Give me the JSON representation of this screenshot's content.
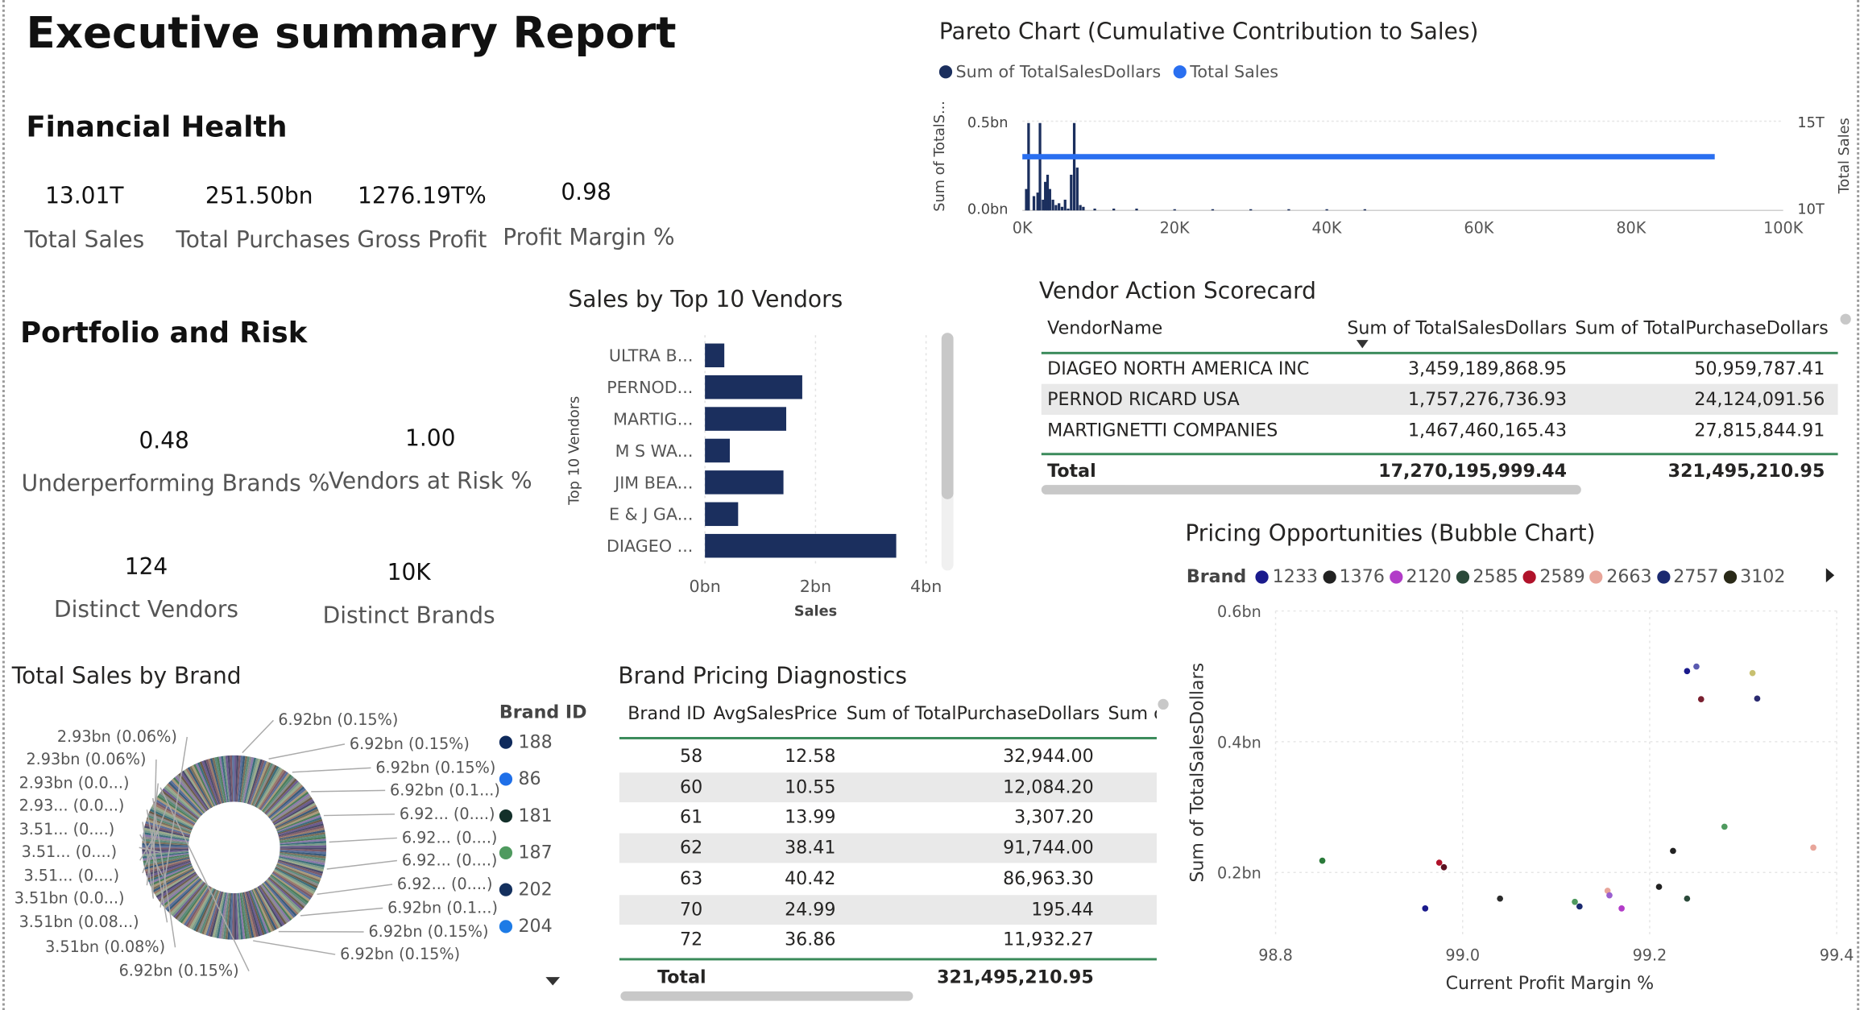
{
  "title": "Executive summary Report",
  "financial": {
    "heading": "Financial Health",
    "kpis": [
      {
        "value": "13.01T",
        "label": "Total Sales"
      },
      {
        "value": "251.50bn",
        "label": "Total Purchases"
      },
      {
        "value": "1276.19T%",
        "label": "Gross Profit"
      },
      {
        "value": "0.98",
        "label": "Profit Margin %"
      }
    ]
  },
  "portfolio": {
    "heading": "Portfolio and Risk",
    "kpis": [
      {
        "value": "0.48",
        "label": "Underperforming Brands %"
      },
      {
        "value": "1.00",
        "label": "Vendors at Risk %"
      },
      {
        "value": "124",
        "label": "Distinct Vendors"
      },
      {
        "value": "10K",
        "label": "Distinct Brands"
      }
    ]
  },
  "pareto": {
    "title": "Pareto Chart (Cumulative Contribution to Sales)",
    "legend": [
      "Sum of TotalSalesDollars",
      "Total Sales"
    ],
    "legend_colors": [
      "#1b2f5e",
      "#2a6ff0"
    ],
    "y_left_label": "Sum of TotalS...",
    "y_left_ticks": [
      "0.5bn",
      "0.0bn"
    ],
    "y_right_label": "Total Sales",
    "y_right_ticks": [
      "15T",
      "10T"
    ],
    "x_ticks": [
      "0K",
      "20K",
      "40K",
      "60K",
      "80K",
      "100K"
    ]
  },
  "vendors_chart": {
    "title": "Sales by Top 10 Vendors",
    "y_label": "Top 10 Vendors",
    "x_label": "Sales",
    "x_ticks": [
      "0bn",
      "2bn",
      "4bn"
    ],
    "color": "#1b2f5e"
  },
  "scorecard": {
    "title": "Vendor Action Scorecard",
    "columns": [
      "VendorName",
      "Sum of TotalSalesDollars",
      "Sum of TotalPurchaseDollars"
    ],
    "rows": [
      {
        "name": "DIAGEO NORTH AMERICA INC",
        "sales": "3,459,189,868.95",
        "purchases": "50,959,787.41"
      },
      {
        "name": "PERNOD RICARD USA",
        "sales": "1,757,276,736.93",
        "purchases": "24,124,091.56"
      },
      {
        "name": "MARTIGNETTI COMPANIES",
        "sales": "1,467,460,165.43",
        "purchases": "27,815,844.91"
      }
    ],
    "total_label": "Total",
    "total_sales": "17,270,195,999.44",
    "total_purchases": "321,495,210.95"
  },
  "donut": {
    "title": "Total Sales by Brand",
    "legend_title": "Brand ID",
    "legend": [
      {
        "id": "188",
        "color": "#0f2a5c"
      },
      {
        "id": "86",
        "color": "#1f6fe8"
      },
      {
        "id": "181",
        "color": "#13302a"
      },
      {
        "id": "187",
        "color": "#4f9a5f"
      },
      {
        "id": "202",
        "color": "#14305e"
      },
      {
        "id": "204",
        "color": "#1d7be6"
      }
    ],
    "labels_left": [
      "2.93bn (0.06%)",
      "2.93bn (0.06%)",
      "2.93bn (0.0...)",
      "2.93... (0.0...)",
      "3.51... (0....)",
      "3.51... (0....)",
      "3.51... (0....)",
      "3.51bn (0.0...)",
      "3.51bn (0.08...)",
      "3.51bn (0.08%)",
      "6.92bn (0.15%)"
    ],
    "labels_right": [
      "6.92bn (0.15%)",
      "6.92bn (0.15%)",
      "6.92bn (0.15%)",
      "6.92bn (0.1...)",
      "6.92... (0....)",
      "6.92... (0....)",
      "6.92... (0....)",
      "6.92... (0....)",
      "6.92bn (0.1...)",
      "6.92bn (0.15%)",
      "6.92bn (0.15%)"
    ]
  },
  "diagnostics": {
    "title": "Brand Pricing Diagnostics",
    "columns": [
      "Brand ID",
      "AvgSalesPrice",
      "Sum of TotalPurchaseDollars",
      "Sum c"
    ],
    "rows": [
      {
        "id": "58",
        "avg": "12.58",
        "purchase": "32,944.00"
      },
      {
        "id": "60",
        "avg": "10.55",
        "purchase": "12,084.20"
      },
      {
        "id": "61",
        "avg": "13.99",
        "purchase": "3,307.20"
      },
      {
        "id": "62",
        "avg": "38.41",
        "purchase": "91,744.00"
      },
      {
        "id": "63",
        "avg": "40.42",
        "purchase": "86,963.30"
      },
      {
        "id": "70",
        "avg": "24.99",
        "purchase": "195.44"
      },
      {
        "id": "72",
        "avg": "36.86",
        "purchase": "11,932.27"
      }
    ],
    "total_label": "Total",
    "total_purchase": "321,495,210.95"
  },
  "bubble": {
    "title": "Pricing Opportunities (Bubble Chart)",
    "legend_title": "Brand",
    "legend": [
      {
        "id": "1233",
        "color": "#1a1a8c"
      },
      {
        "id": "1376",
        "color": "#222222"
      },
      {
        "id": "2120",
        "color": "#b23cc8"
      },
      {
        "id": "2585",
        "color": "#2b4a3a"
      },
      {
        "id": "2589",
        "color": "#b0122a"
      },
      {
        "id": "2663",
        "color": "#e8a59a"
      },
      {
        "id": "2757",
        "color": "#1b2a70"
      },
      {
        "id": "3102",
        "color": "#2a2a18"
      }
    ],
    "y_label": "Sum of TotalSalesDollars",
    "x_label": "Current Profit Margin %",
    "y_ticks": [
      "0.6bn",
      "0.4bn",
      "0.2bn"
    ],
    "x_ticks": [
      "98.8",
      "99.0",
      "99.2",
      "99.4"
    ]
  },
  "chart_data": [
    {
      "type": "bar",
      "title": "Sales by Top 10 Vendors",
      "xlabel": "Sales",
      "ylabel": "Top 10 Vendors",
      "orientation": "horizontal",
      "categories": [
        "ULTRA B...",
        "PERNOD...",
        "MARTIG...",
        "M S WA...",
        "JIM BEA...",
        "E & J GA...",
        "DIAGEO ..."
      ],
      "values": [
        0.35,
        1.76,
        1.47,
        0.45,
        1.42,
        0.6,
        3.46
      ],
      "xlim": [
        0,
        4
      ],
      "unit": "bn"
    },
    {
      "type": "line",
      "title": "Pareto Chart (Cumulative Contribution to Sales)",
      "xlim": [
        0,
        100000
      ],
      "series": [
        {
          "name": "Sum of TotalSalesDollars",
          "axis": "left",
          "ylim": [
            0,
            0.5
          ],
          "x": [
            500,
            800,
            1500,
            2000,
            2300,
            2700,
            3000,
            3300,
            3600,
            4000,
            4400,
            4800,
            5200,
            5600,
            6000,
            6400,
            6800,
            7200,
            7600,
            8000,
            9500,
            12000,
            15000,
            20000,
            25000,
            30000,
            35000,
            40000,
            45000
          ],
          "y": [
            0.12,
            0.49,
            0.08,
            0.1,
            0.49,
            0.06,
            0.16,
            0.2,
            0.12,
            0.06,
            0.03,
            0.04,
            0.02,
            0.06,
            0.01,
            0.2,
            0.49,
            0.24,
            0.03,
            0.02,
            0.01,
            0.01,
            0.01,
            0.005,
            0.004,
            0.004,
            0.003,
            0.003,
            0.002
          ]
        },
        {
          "name": "Total Sales",
          "axis": "right",
          "ylim": [
            10,
            15
          ],
          "x": [
            0,
            91000
          ],
          "y": [
            13.01,
            13.01
          ]
        }
      ]
    },
    {
      "type": "scatter",
      "title": "Pricing Opportunities (Bubble Chart)",
      "xlabel": "Current Profit Margin %",
      "ylabel": "Sum of TotalSalesDollars",
      "xlim": [
        98.8,
        99.4
      ],
      "ylim": [
        0.1,
        0.6
      ],
      "points": [
        {
          "x": 98.85,
          "y": 0.218,
          "color": "#2a7a3a"
        },
        {
          "x": 98.96,
          "y": 0.145,
          "color": "#1a1a8c"
        },
        {
          "x": 98.975,
          "y": 0.215,
          "color": "#b0122a"
        },
        {
          "x": 98.98,
          "y": 0.208,
          "color": "#5a1020"
        },
        {
          "x": 99.04,
          "y": 0.16,
          "color": "#2b2b2b"
        },
        {
          "x": 99.12,
          "y": 0.155,
          "color": "#4f9a5f"
        },
        {
          "x": 99.125,
          "y": 0.148,
          "color": "#1b2a70"
        },
        {
          "x": 99.155,
          "y": 0.172,
          "color": "#e8a59a"
        },
        {
          "x": 99.157,
          "y": 0.165,
          "color": "#9a5fcf"
        },
        {
          "x": 99.17,
          "y": 0.145,
          "color": "#b23cc8"
        },
        {
          "x": 99.21,
          "y": 0.178,
          "color": "#222222"
        },
        {
          "x": 99.225,
          "y": 0.233,
          "color": "#222222"
        },
        {
          "x": 99.24,
          "y": 0.16,
          "color": "#2b4a3a"
        },
        {
          "x": 99.24,
          "y": 0.508,
          "color": "#1a1a8c"
        },
        {
          "x": 99.25,
          "y": 0.515,
          "color": "#5a5ab0"
        },
        {
          "x": 99.255,
          "y": 0.465,
          "color": "#7a2030"
        },
        {
          "x": 99.28,
          "y": 0.27,
          "color": "#4f9a5f"
        },
        {
          "x": 99.31,
          "y": 0.505,
          "color": "#c8c070"
        },
        {
          "x": 99.315,
          "y": 0.466,
          "color": "#2a2a70"
        },
        {
          "x": 99.375,
          "y": 0.238,
          "color": "#e8a59a"
        }
      ]
    },
    {
      "type": "pie",
      "title": "Total Sales by Brand",
      "donut": true,
      "slice_count": 260
    }
  ]
}
